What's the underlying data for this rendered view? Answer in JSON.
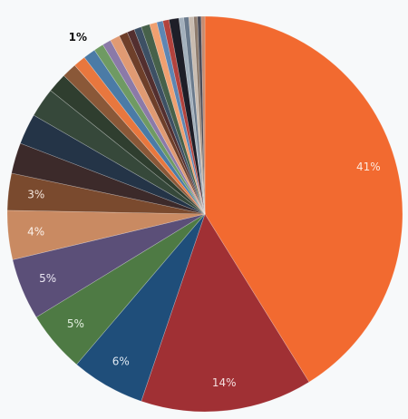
{
  "chart_data": {
    "type": "pie",
    "title": "",
    "slices": [
      {
        "label": "41%",
        "value": 41,
        "color": "#f26a30",
        "label_color": "#fde8dc"
      },
      {
        "label": "14%",
        "value": 14,
        "color": "#a03034",
        "label_color": "#f3dede"
      },
      {
        "label": "6%",
        "value": 6,
        "color": "#1f4e7a",
        "label_color": "#dfe8f2"
      },
      {
        "label": "5%",
        "value": 5,
        "color": "#4e7a44",
        "label_color": "#e3efe0"
      },
      {
        "label": "5%",
        "value": 5,
        "color": "#5b4f78",
        "label_color": "#ebe7f3"
      },
      {
        "label": "4%",
        "value": 4,
        "color": "#c98a62",
        "label_color": "#fbf1ea"
      },
      {
        "label": "3%",
        "value": 3,
        "color": "#7a4a2e",
        "label_color": "#f4e6dc"
      },
      {
        "label": "",
        "value": 2.5,
        "color": "#3c2a2a"
      },
      {
        "label": "",
        "value": 2.5,
        "color": "#243447"
      },
      {
        "label": "",
        "value": 2.4,
        "color": "#36483a"
      },
      {
        "label": "",
        "value": 1.6,
        "color": "#2f3e2f"
      },
      {
        "label": "",
        "value": 1.2,
        "color": "#8a5838"
      },
      {
        "label": "",
        "value": 1.0,
        "color": "#e8773e"
      },
      {
        "label": "1%",
        "value": 1,
        "color": "#4b7ba6",
        "label_color": "#111111",
        "label_outside": true
      },
      {
        "label": "",
        "value": 0.8,
        "color": "#6f9a63"
      },
      {
        "label": "",
        "value": 0.7,
        "color": "#8b7aa8"
      },
      {
        "label": "",
        "value": 0.8,
        "color": "#e09a73"
      },
      {
        "label": "",
        "value": 0.7,
        "color": "#6e3f2a"
      },
      {
        "label": "",
        "value": 0.6,
        "color": "#532f2f"
      },
      {
        "label": "",
        "value": 0.6,
        "color": "#3d5064"
      },
      {
        "label": "",
        "value": 0.7,
        "color": "#47614a"
      },
      {
        "label": "",
        "value": 0.6,
        "color": "#f0a070"
      },
      {
        "label": "",
        "value": 0.5,
        "color": "#5d86b3"
      },
      {
        "label": "",
        "value": 0.5,
        "color": "#b3423d"
      },
      {
        "label": "",
        "value": 0.8,
        "color": "#1e1e28"
      },
      {
        "label": "",
        "value": 0.4,
        "color": "#a3b0bc"
      },
      {
        "label": "",
        "value": 0.4,
        "color": "#6a7a8c"
      },
      {
        "label": "",
        "value": 0.4,
        "color": "#c9bcb0"
      },
      {
        "label": "",
        "value": 0.3,
        "color": "#8e7c6e"
      },
      {
        "label": "",
        "value": 0.3,
        "color": "#4a4a55"
      },
      {
        "label": "",
        "value": 0.3,
        "color": "#c58b70"
      }
    ]
  }
}
